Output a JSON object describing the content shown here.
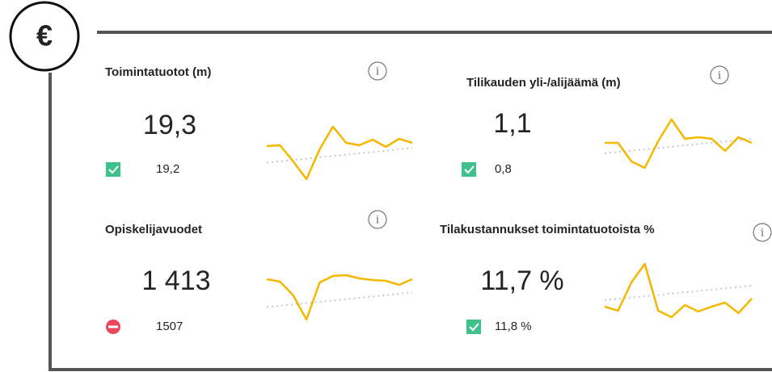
{
  "cards": [
    {
      "title": "Toimintatuotot (m)",
      "value": "19,3",
      "comparison": "19,2",
      "status": "good",
      "trend": [
        4.9,
        5.0,
        3.0,
        0.8,
        4.5,
        7.3,
        5.3,
        5.0,
        5.7,
        4.8,
        5.8,
        5.3
      ]
    },
    {
      "title": "Tilikauden yli-/alijäämä (m)",
      "value": "1,1",
      "comparison": "0,8",
      "status": "good",
      "trend": [
        5.3,
        5.3,
        3.0,
        2.2,
        5.5,
        8.2,
        5.8,
        6.0,
        5.8,
        4.3,
        6.0,
        5.3
      ]
    },
    {
      "title": "Opiskelijavuodet",
      "value": "1 413",
      "comparison": "1507",
      "status": "bad",
      "trend": [
        6.4,
        6.1,
        4.4,
        1.4,
        6.0,
        6.8,
        6.9,
        6.5,
        6.3,
        6.2,
        5.7,
        6.4
      ]
    },
    {
      "title": "Tilakustannukset toimintatuotoista %",
      "value": "11,7 %",
      "comparison": "11,8 %",
      "status": "good",
      "trend": [
        3.0,
        2.5,
        6.0,
        8.3,
        2.5,
        1.7,
        3.2,
        2.4,
        3.0,
        3.5,
        2.2,
        4.0
      ]
    }
  ],
  "badge": "€"
}
